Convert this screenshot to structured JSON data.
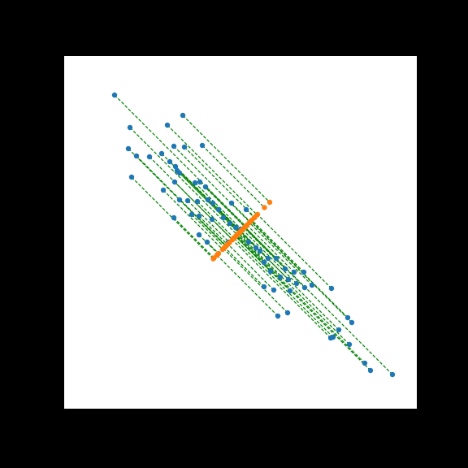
{
  "chart_data": {
    "type": "scatter",
    "xlim": [
      0,
      434
    ],
    "ylim": [
      0,
      434
    ],
    "connector_color": "green",
    "series": [
      {
        "color": "#1f77b4",
        "x": [
          62,
          81,
          146,
          127,
          79,
          89,
          105,
          120,
          135,
          148,
          170,
          130,
          137,
          139,
          142,
          83,
          122,
          136,
          161,
          167,
          174,
          152,
          142,
          164,
          177,
          183,
          190,
          206,
          224,
          135,
          157,
          166,
          182,
          196,
          204,
          211,
          217,
          166,
          176,
          202,
          227,
          236,
          241,
          251,
          261,
          246,
          254,
          272,
          266,
          276,
          283,
          295,
          305,
          286,
          278,
          246,
          258,
          329,
          275,
          263,
          296,
          349,
          354,
          338,
          328,
          331,
          351,
          370,
          377,
          404
        ],
        "values": [
          386,
          346,
          361,
          349,
          320,
          311,
          310,
          314,
          323,
          322,
          324,
          304,
          298,
          293,
          290,
          285,
          269,
          279,
          278,
          279,
          273,
          256,
          257,
          255,
          257,
          253,
          245,
          253,
          245,
          235,
          239,
          237,
          233,
          235,
          228,
          223,
          221,
          214,
          205,
          205,
          205,
          198,
          194,
          185,
          185,
          180,
          169,
          172,
          162,
          159,
          168,
          168,
          152,
          154,
          145,
          150,
          146,
          148,
          118,
          114,
          149,
          112,
          106,
          97,
          87,
          88,
          79,
          56,
          47,
          42
        ]
      },
      {
        "color": "#ff7f0e",
        "x": [
          223.5,
          213,
          253,
          237.5,
          199,
          199.5,
          207,
          216.5,
          228.5,
          234.5,
          246.5,
          216.5,
          217,
          215.5,
          215.5,
          183.5,
          195,
          207,
          219,
          222.5,
          223,
          203.5,
          199,
          209,
          216.5,
          217.5,
          217,
          229,
          234,
          184.5,
          197.5,
          201,
          207,
          215,
          215.5,
          216.5,
          218.5,
          189.5,
          190,
          203,
          215.5,
          216.5,
          217,
          217.5,
          222.5,
          212.5,
          211,
          221.5,
          213.5,
          217,
          225,
          231,
          228,
          219.5,
          211,
          197.5,
          201.5,
          238,
          196,
          188,
          222,
          230,
          229.5,
          217,
          207,
          209,
          214.5,
          212.5,
          211.5,
          222.5
        ],
        "values": [
          224.5,
          214,
          254,
          238.5,
          200,
          200.5,
          208,
          217.5,
          229.5,
          235.5,
          247.5,
          217.5,
          218,
          216.5,
          216.5,
          184.5,
          196,
          208,
          220,
          223.5,
          224,
          204.5,
          200,
          210,
          217.5,
          218.5,
          218,
          230,
          235,
          185.5,
          198.5,
          202,
          208,
          216,
          216.5,
          217.5,
          219.5,
          190.5,
          191,
          204,
          216.5,
          217.5,
          218,
          218.5,
          223.5,
          213.5,
          212,
          222.5,
          214.5,
          218,
          226,
          232,
          229,
          220.5,
          212,
          198.5,
          202.5,
          239,
          197,
          189,
          223,
          231,
          230.5,
          218,
          208,
          210,
          215.5,
          213.5,
          212.5,
          223.5
        ]
      }
    ]
  }
}
